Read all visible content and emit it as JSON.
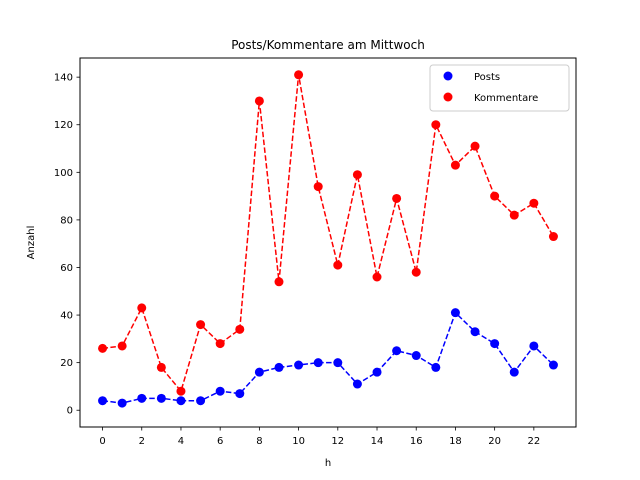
{
  "chart_data": {
    "type": "line",
    "title": "Posts/Kommentare am Mittwoch",
    "xlabel": "h",
    "ylabel": "Anzahl",
    "x": [
      0,
      1,
      2,
      3,
      4,
      5,
      6,
      7,
      8,
      9,
      10,
      11,
      12,
      13,
      14,
      15,
      16,
      17,
      18,
      19,
      20,
      21,
      22,
      23
    ],
    "xlim": [
      -1.15,
      24.15
    ],
    "ylim": [
      -7.05,
      148.05
    ],
    "xticks": [
      0,
      2,
      4,
      6,
      8,
      10,
      12,
      14,
      16,
      18,
      20,
      22
    ],
    "yticks": [
      0,
      20,
      40,
      60,
      80,
      100,
      120,
      140
    ],
    "grid": false,
    "legend_position": "top-right",
    "series": [
      {
        "name": "Posts",
        "color": "#0000ff",
        "line_style": "dashed",
        "marker": "circle",
        "values": [
          4,
          3,
          5,
          5,
          4,
          4,
          8,
          7,
          16,
          18,
          19,
          20,
          20,
          11,
          16,
          25,
          23,
          18,
          41,
          33,
          28,
          16,
          27,
          19
        ]
      },
      {
        "name": "Kommentare",
        "color": "#ff0000",
        "line_style": "dashed",
        "marker": "circle",
        "values": [
          26,
          27,
          43,
          18,
          8,
          36,
          28,
          34,
          130,
          54,
          141,
          94,
          61,
          99,
          56,
          89,
          58,
          120,
          103,
          111,
          90,
          82,
          87,
          73
        ]
      }
    ]
  }
}
